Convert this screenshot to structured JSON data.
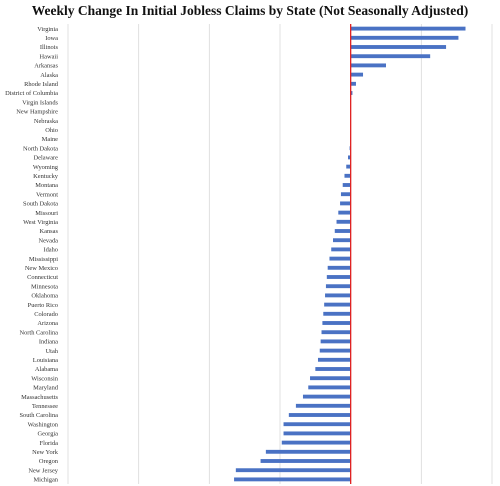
{
  "chart_data": {
    "type": "bar",
    "orientation": "horizontal",
    "title": "Weekly Change In Initial Jobless Claims by State (Not Seasonally Adjusted)",
    "xlabel": "",
    "ylabel": "",
    "xlim": [
      -16000,
      8000
    ],
    "grid": true,
    "legend": "none",
    "colors": {
      "bar": "#4a72c4",
      "zero_line": "#e02020",
      "grid": "#d9d9d9"
    },
    "categories": [
      "Virginia",
      "Iowa",
      "Illinois",
      "Hawaii",
      "Arkansas",
      "Alaska",
      "Rhode Island",
      "District of Columbia",
      "Virgin Islands",
      "New Hampshire",
      "Nebraska",
      "Ohio",
      "Maine",
      "North Dakota",
      "Delaware",
      "Wyoming",
      "Kentucky",
      "Montana",
      "Vermont",
      "South Dakota",
      "Missouri",
      "West Virginia",
      "Kansas",
      "Nevada",
      "Idaho",
      "Mississippi",
      "New Mexico",
      "Connecticut",
      "Minnesota",
      "Oklahoma",
      "Puerto Rico",
      "Colorado",
      "Arizona",
      "North Carolina",
      "Indiana",
      "Utah",
      "Louisiana",
      "Alabama",
      "Wisconsin",
      "Maryland",
      "Massachusetts",
      "Tennessee",
      "South Carolina",
      "Washington",
      "Georgia",
      "Florida",
      "New York",
      "Oregon",
      "New Jersey",
      "Michigan"
    ],
    "values": [
      6500,
      6100,
      5400,
      4500,
      2000,
      700,
      300,
      100,
      0,
      0,
      0,
      0,
      -30,
      -60,
      -150,
      -250,
      -350,
      -450,
      -550,
      -600,
      -700,
      -800,
      -900,
      -1000,
      -1100,
      -1200,
      -1300,
      -1350,
      -1400,
      -1450,
      -1500,
      -1550,
      -1600,
      -1650,
      -1700,
      -1750,
      -1850,
      -2000,
      -2300,
      -2400,
      -2700,
      -3100,
      -3500,
      -3800,
      -3800,
      -3900,
      -4800,
      -5100,
      -6500,
      -6600
    ]
  }
}
